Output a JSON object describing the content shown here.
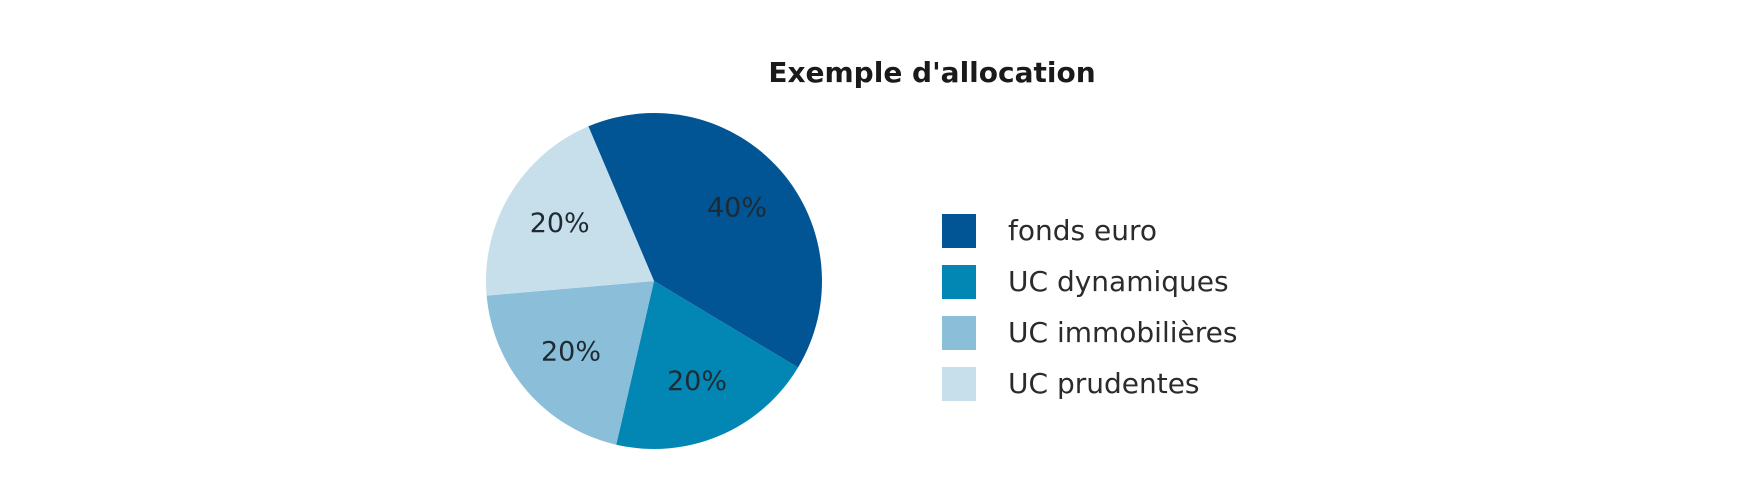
{
  "chart_data": {
    "type": "pie",
    "title": "Exemple d'allocation",
    "slices": [
      {
        "label": "fonds euro",
        "value": 40,
        "display": "40%",
        "color": "#025594"
      },
      {
        "label": "UC dynamiques",
        "value": 20,
        "display": "20%",
        "color": "#0287b5"
      },
      {
        "label": "UC immobilières",
        "value": 20,
        "display": "20%",
        "color": "#8bbfd9"
      },
      {
        "label": "UC prudentes",
        "value": 20,
        "display": "20%",
        "color": "#c6dfeb"
      }
    ],
    "legend_position": "right"
  }
}
